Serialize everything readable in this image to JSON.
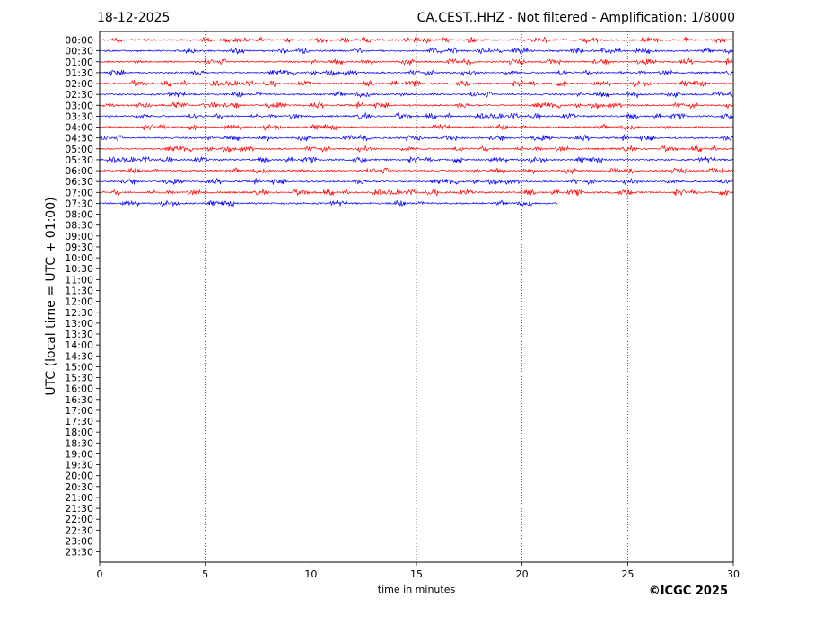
{
  "header": {
    "date": "18-12-2025",
    "title": "CA.CEST..HHZ - Not filtered - Amplification: 1/8000"
  },
  "footer": {
    "copyright": "©ICGC 2025"
  },
  "chart_data": {
    "type": "line",
    "xlabel": "time in minutes",
    "ylabel": "UTC (local time = UTC + 01:00)",
    "xlim": [
      0,
      30
    ],
    "x_ticks": [
      "0",
      "5",
      "10",
      "15",
      "20",
      "25",
      "30"
    ],
    "x_gridlines": [
      5,
      10,
      15,
      20,
      25
    ],
    "rows": [
      "00:00",
      "00:30",
      "01:00",
      "01:30",
      "02:00",
      "02:30",
      "03:00",
      "03:30",
      "04:00",
      "04:30",
      "05:00",
      "05:30",
      "06:00",
      "06:30",
      "07:00",
      "07:30",
      "08:00",
      "08:30",
      "09:00",
      "09:30",
      "10:00",
      "10:30",
      "11:00",
      "11:30",
      "12:00",
      "12:30",
      "13:00",
      "13:30",
      "14:00",
      "14:30",
      "15:00",
      "15:30",
      "16:00",
      "16:30",
      "17:00",
      "17:30",
      "18:00",
      "18:30",
      "19:00",
      "19:30",
      "20:00",
      "20:30",
      "21:00",
      "21:30",
      "22:00",
      "22:30",
      "23:00",
      "23:30"
    ],
    "trace_colors": [
      "#ff0000",
      "#0000ff"
    ],
    "trace_end_minutes": [
      30,
      30,
      30,
      30,
      30,
      30,
      30,
      30,
      30,
      30,
      30,
      30,
      30,
      30,
      30,
      21.7
    ]
  }
}
